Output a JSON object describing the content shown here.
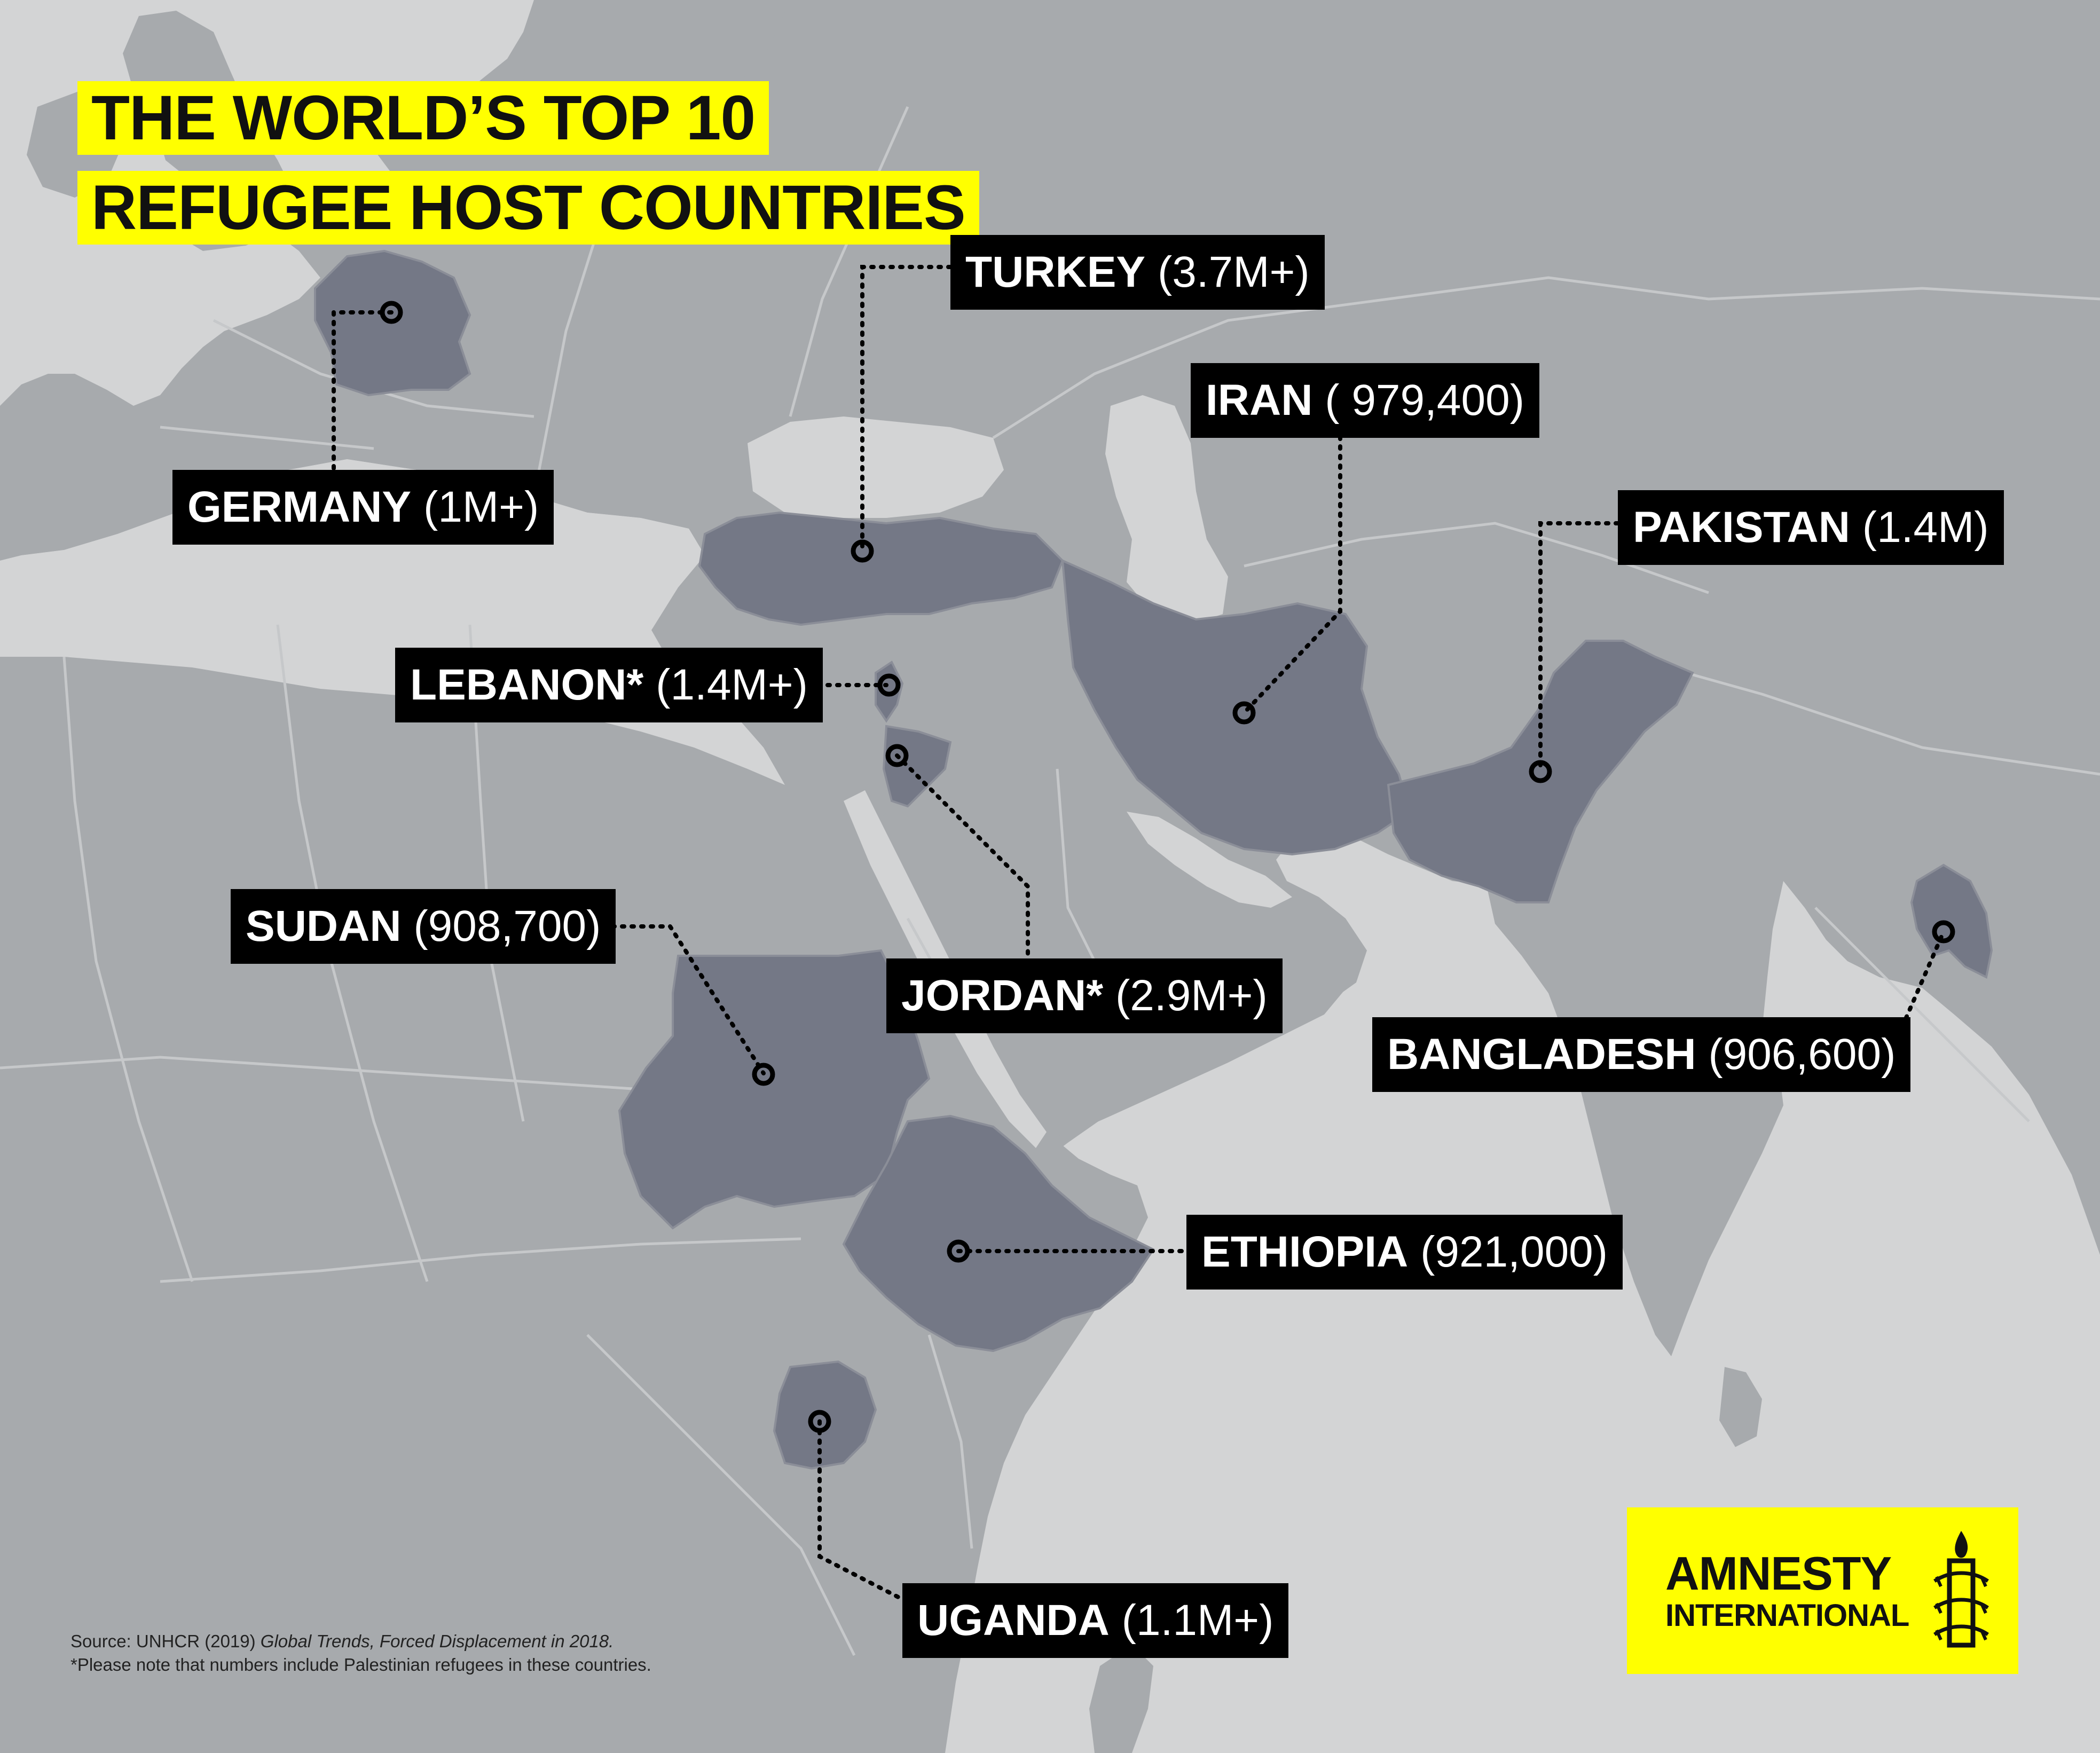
{
  "title": {
    "line1": "THE WORLD’S TOP 10",
    "line2": "REFUGEE HOST COUNTRIES"
  },
  "countries": [
    {
      "id": "germany",
      "name": "GERMANY",
      "value": "(1M+)"
    },
    {
      "id": "turkey",
      "name": "TURKEY",
      "value": "(3.7M+)"
    },
    {
      "id": "iran",
      "name": "IRAN",
      "value": "( 979,400)"
    },
    {
      "id": "pakistan",
      "name": "PAKISTAN",
      "value": "(1.4M)"
    },
    {
      "id": "lebanon",
      "name": "LEBANON*",
      "value": "(1.4M+)"
    },
    {
      "id": "sudan",
      "name": "SUDAN",
      "value": "(908,700)"
    },
    {
      "id": "jordan",
      "name": "JORDAN*",
      "value": "(2.9M+)"
    },
    {
      "id": "bangladesh",
      "name": "BANGLADESH",
      "value": "(906,600)"
    },
    {
      "id": "ethiopia",
      "name": "ETHIOPIA",
      "value": "(921,000)"
    },
    {
      "id": "uganda",
      "name": "UGANDA",
      "value": "(1.1M+)"
    }
  ],
  "source": {
    "prefix": "Source: UNHCR (2019) ",
    "publication": "Global Trends, Forced Displacement in 2018.",
    "note": "*Please note that numbers include Palestinian refugees in these countries."
  },
  "logo": {
    "line1": "AMNESTY",
    "line2": "INTERNATIONAL",
    "icon": "candle-barbed-wire-icon"
  },
  "colors": {
    "sea": "#d3d4d5",
    "land": "#a7aaad",
    "highlight": "#747886",
    "border": "#c6c8ca",
    "label_bg": "#000000",
    "accent_yellow": "#ffff00"
  }
}
